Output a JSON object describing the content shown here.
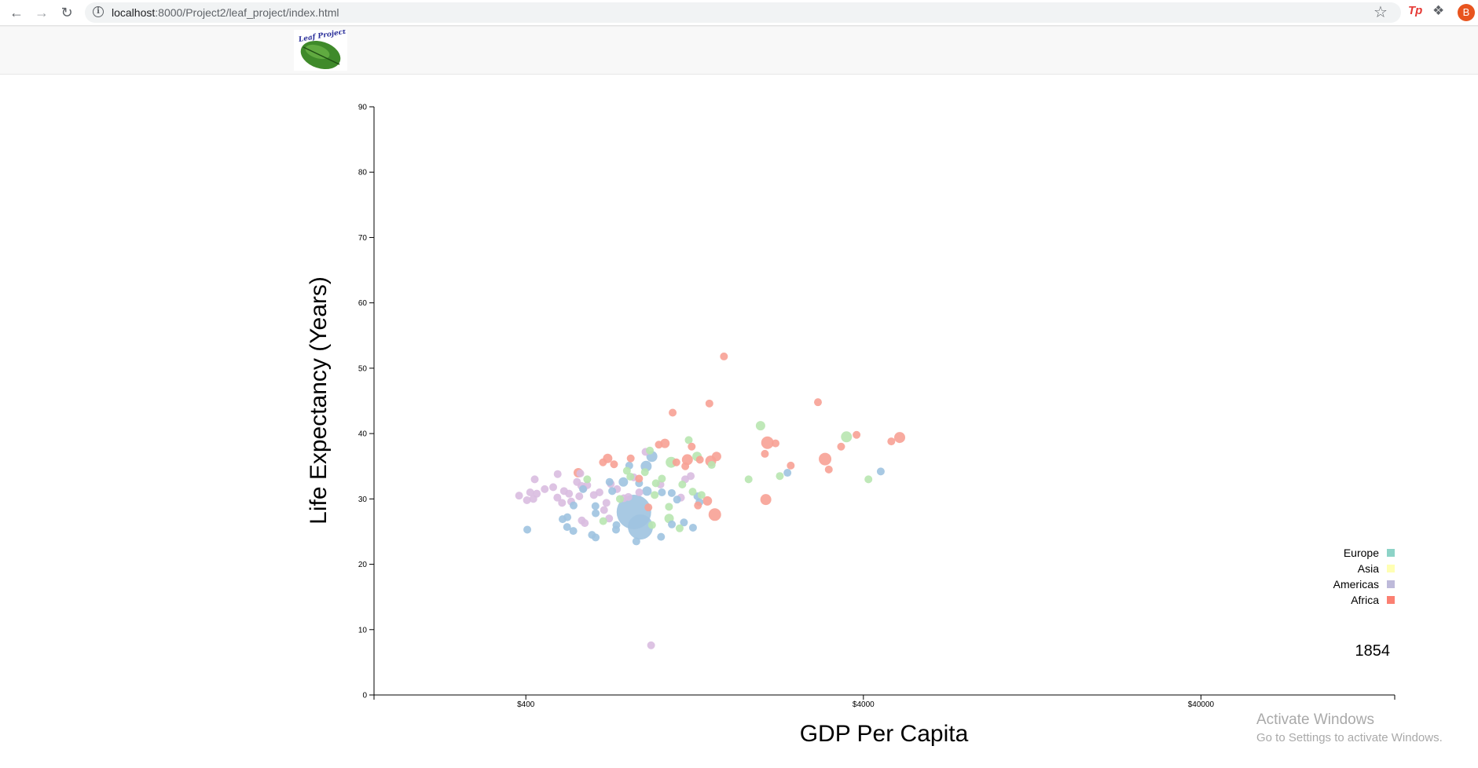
{
  "browser": {
    "url_host": "localhost",
    "url_rest": ":8000/Project2/leaf_project/index.html",
    "avatar_letter": "B",
    "extension_label": "Tp"
  },
  "site": {
    "logo_text": "Leaf Project"
  },
  "windows_watermark": {
    "title": "Activate Windows",
    "subtitle": "Go to Settings to activate Windows."
  },
  "colors": {
    "Europe": "#8dd3c7",
    "Asia": "#ffffb3",
    "Americas": "#bebada",
    "Africa": "#fb8072",
    "dot_blue": "#9ec3e0",
    "dot_purple": "#d9bde0",
    "dot_green": "#b8e6b0",
    "dot_red": "#f7a195"
  },
  "chart_data": {
    "type": "scatter",
    "title": "",
    "xlabel": "GDP Per Capita",
    "ylabel": "Life Expectancy (Years)",
    "x_scale": "log",
    "xlim": [
      142,
      150000
    ],
    "ylim": [
      0,
      90
    ],
    "x_ticks": [
      400,
      4000,
      40000
    ],
    "x_tick_labels": [
      "$400",
      "$4000",
      "$40000"
    ],
    "y_ticks": [
      0,
      10,
      20,
      30,
      40,
      50,
      60,
      70,
      80,
      90
    ],
    "year_label": "1854",
    "legend": {
      "placement": "bottom-right",
      "items": [
        {
          "name": "Europe",
          "color": "#8dd3c7"
        },
        {
          "name": "Asia",
          "color": "#ffffb3"
        },
        {
          "name": "Americas",
          "color": "#bebada"
        },
        {
          "name": "Africa",
          "color": "#fb8072"
        }
      ]
    },
    "points": [
      {
        "x": 382,
        "y": 30.5,
        "r": 5,
        "c": "purple"
      },
      {
        "x": 421,
        "y": 30,
        "r": 5,
        "c": "purple"
      },
      {
        "x": 431,
        "y": 30.8,
        "r": 5,
        "c": "purple"
      },
      {
        "x": 403,
        "y": 29.8,
        "r": 5,
        "c": "purple"
      },
      {
        "x": 412,
        "y": 31,
        "r": 5,
        "c": "purple"
      },
      {
        "x": 425,
        "y": 33,
        "r": 5,
        "c": "purple"
      },
      {
        "x": 455,
        "y": 31.5,
        "r": 5,
        "c": "purple"
      },
      {
        "x": 482,
        "y": 31.8,
        "r": 5,
        "c": "purple"
      },
      {
        "x": 497,
        "y": 33.8,
        "r": 5,
        "c": "purple"
      },
      {
        "x": 496,
        "y": 30.2,
        "r": 5,
        "c": "purple"
      },
      {
        "x": 512,
        "y": 29.4,
        "r": 5,
        "c": "purple"
      },
      {
        "x": 519,
        "y": 31.2,
        "r": 5,
        "c": "purple"
      },
      {
        "x": 537,
        "y": 30.8,
        "r": 5,
        "c": "purple"
      },
      {
        "x": 545,
        "y": 29.6,
        "r": 5,
        "c": "purple"
      },
      {
        "x": 567,
        "y": 32.6,
        "r": 5,
        "c": "purple"
      },
      {
        "x": 580,
        "y": 33.9,
        "r": 5,
        "c": "purple"
      },
      {
        "x": 584,
        "y": 32,
        "r": 5,
        "c": "purple"
      },
      {
        "x": 593,
        "y": 31.6,
        "r": 5,
        "c": "purple"
      },
      {
        "x": 608,
        "y": 32.1,
        "r": 5,
        "c": "purple"
      },
      {
        "x": 576,
        "y": 30.4,
        "r": 5,
        "c": "purple"
      },
      {
        "x": 586,
        "y": 26.7,
        "r": 5,
        "c": "purple"
      },
      {
        "x": 598,
        "y": 26.3,
        "r": 5,
        "c": "purple"
      },
      {
        "x": 636,
        "y": 30.6,
        "r": 5,
        "c": "purple"
      },
      {
        "x": 661,
        "y": 31,
        "r": 5,
        "c": "purple"
      },
      {
        "x": 682,
        "y": 28.3,
        "r": 5,
        "c": "purple"
      },
      {
        "x": 693,
        "y": 29.4,
        "r": 5,
        "c": "purple"
      },
      {
        "x": 706,
        "y": 27,
        "r": 5,
        "c": "purple"
      },
      {
        "x": 714,
        "y": 32.3,
        "r": 5,
        "c": "purple"
      },
      {
        "x": 745,
        "y": 31.5,
        "r": 5,
        "c": "purple"
      },
      {
        "x": 780,
        "y": 30.1,
        "r": 5,
        "c": "purple"
      },
      {
        "x": 805,
        "y": 30.3,
        "r": 5,
        "c": "purple"
      },
      {
        "x": 835,
        "y": 33.3,
        "r": 5,
        "c": "purple"
      },
      {
        "x": 867,
        "y": 31,
        "r": 5,
        "c": "purple"
      },
      {
        "x": 905,
        "y": 37.2,
        "r": 5,
        "c": "purple"
      },
      {
        "x": 940,
        "y": 7.6,
        "r": 5,
        "c": "purple"
      },
      {
        "x": 1002,
        "y": 32.2,
        "r": 5,
        "c": "purple"
      },
      {
        "x": 1186,
        "y": 33,
        "r": 5,
        "c": "purple"
      },
      {
        "x": 1232,
        "y": 33.5,
        "r": 5,
        "c": "purple"
      },
      {
        "x": 1152,
        "y": 30.2,
        "r": 5,
        "c": "purple"
      },
      {
        "x": 404,
        "y": 25.3,
        "r": 5,
        "c": "blue"
      },
      {
        "x": 514,
        "y": 26.9,
        "r": 5,
        "c": "blue"
      },
      {
        "x": 530,
        "y": 25.7,
        "r": 5,
        "c": "blue"
      },
      {
        "x": 531,
        "y": 27.2,
        "r": 5,
        "c": "blue"
      },
      {
        "x": 554,
        "y": 29,
        "r": 5,
        "c": "blue"
      },
      {
        "x": 553,
        "y": 25.1,
        "r": 5,
        "c": "blue"
      },
      {
        "x": 591,
        "y": 31.5,
        "r": 5,
        "c": "blue"
      },
      {
        "x": 628,
        "y": 24.5,
        "r": 5,
        "c": "blue"
      },
      {
        "x": 644,
        "y": 24.1,
        "r": 5,
        "c": "blue"
      },
      {
        "x": 643,
        "y": 28.9,
        "r": 5,
        "c": "blue"
      },
      {
        "x": 644,
        "y": 27.8,
        "r": 5,
        "c": "blue"
      },
      {
        "x": 708,
        "y": 32.6,
        "r": 5,
        "c": "blue"
      },
      {
        "x": 721,
        "y": 31.2,
        "r": 5,
        "c": "blue"
      },
      {
        "x": 740,
        "y": 25.3,
        "r": 5,
        "c": "blue"
      },
      {
        "x": 742,
        "y": 26,
        "r": 5,
        "c": "blue"
      },
      {
        "x": 778,
        "y": 32.6,
        "r": 6,
        "c": "blue"
      },
      {
        "x": 810,
        "y": 35.1,
        "r": 5,
        "c": "blue"
      },
      {
        "x": 836,
        "y": 28,
        "r": 22,
        "c": "blue"
      },
      {
        "x": 874,
        "y": 25.7,
        "r": 16,
        "c": "blue"
      },
      {
        "x": 850,
        "y": 23.5,
        "r": 5,
        "c": "blue"
      },
      {
        "x": 866,
        "y": 32.4,
        "r": 5,
        "c": "blue"
      },
      {
        "x": 909,
        "y": 35,
        "r": 7,
        "c": "blue"
      },
      {
        "x": 945,
        "y": 36.5,
        "r": 7,
        "c": "blue"
      },
      {
        "x": 914,
        "y": 31.2,
        "r": 6,
        "c": "blue"
      },
      {
        "x": 1006,
        "y": 24.2,
        "r": 5,
        "c": "blue"
      },
      {
        "x": 1012,
        "y": 31,
        "r": 5,
        "c": "blue"
      },
      {
        "x": 1082,
        "y": 30.9,
        "r": 5,
        "c": "blue"
      },
      {
        "x": 1083,
        "y": 26.1,
        "r": 5,
        "c": "blue"
      },
      {
        "x": 1122,
        "y": 29.9,
        "r": 5,
        "c": "blue"
      },
      {
        "x": 1176,
        "y": 26.4,
        "r": 5,
        "c": "blue"
      },
      {
        "x": 1251,
        "y": 25.6,
        "r": 5,
        "c": "blue"
      },
      {
        "x": 1289,
        "y": 30.4,
        "r": 5,
        "c": "blue"
      },
      {
        "x": 1307,
        "y": 29.5,
        "r": 5,
        "c": "blue"
      },
      {
        "x": 2383,
        "y": 34,
        "r": 5,
        "c": "blue"
      },
      {
        "x": 4503,
        "y": 34.2,
        "r": 5,
        "c": "blue"
      },
      {
        "x": 608,
        "y": 33,
        "r": 5,
        "c": "green"
      },
      {
        "x": 678,
        "y": 26.6,
        "r": 5,
        "c": "green"
      },
      {
        "x": 760,
        "y": 30,
        "r": 5,
        "c": "green"
      },
      {
        "x": 797,
        "y": 34.3,
        "r": 5,
        "c": "green"
      },
      {
        "x": 816,
        "y": 33.4,
        "r": 5,
        "c": "green"
      },
      {
        "x": 901,
        "y": 34.1,
        "r": 5,
        "c": "green"
      },
      {
        "x": 932,
        "y": 37.4,
        "r": 5,
        "c": "green"
      },
      {
        "x": 946,
        "y": 26,
        "r": 5,
        "c": "green"
      },
      {
        "x": 963,
        "y": 30.6,
        "r": 5,
        "c": "green"
      },
      {
        "x": 971,
        "y": 32.4,
        "r": 5,
        "c": "green"
      },
      {
        "x": 1012,
        "y": 33.1,
        "r": 5,
        "c": "green"
      },
      {
        "x": 1062,
        "y": 28.8,
        "r": 5,
        "c": "green"
      },
      {
        "x": 1063,
        "y": 27,
        "r": 6,
        "c": "green"
      },
      {
        "x": 1078,
        "y": 35.6,
        "r": 7,
        "c": "green"
      },
      {
        "x": 1142,
        "y": 25.5,
        "r": 5,
        "c": "green"
      },
      {
        "x": 1163,
        "y": 32.2,
        "r": 5,
        "c": "green"
      },
      {
        "x": 1215,
        "y": 39,
        "r": 5,
        "c": "green"
      },
      {
        "x": 1248,
        "y": 31.1,
        "r": 5,
        "c": "green"
      },
      {
        "x": 1286,
        "y": 36.5,
        "r": 6,
        "c": "green"
      },
      {
        "x": 1326,
        "y": 30.6,
        "r": 5,
        "c": "green"
      },
      {
        "x": 1421,
        "y": 35.2,
        "r": 5,
        "c": "green"
      },
      {
        "x": 1828,
        "y": 33,
        "r": 5,
        "c": "green"
      },
      {
        "x": 1983,
        "y": 41.2,
        "r": 6,
        "c": "green"
      },
      {
        "x": 2262,
        "y": 33.5,
        "r": 5,
        "c": "green"
      },
      {
        "x": 3564,
        "y": 39.5,
        "r": 7,
        "c": "green"
      },
      {
        "x": 4140,
        "y": 33,
        "r": 5,
        "c": "green"
      },
      {
        "x": 572,
        "y": 34,
        "r": 6,
        "c": "red"
      },
      {
        "x": 677,
        "y": 35.6,
        "r": 5,
        "c": "red"
      },
      {
        "x": 699,
        "y": 36.2,
        "r": 6,
        "c": "red"
      },
      {
        "x": 730,
        "y": 35.3,
        "r": 5,
        "c": "red"
      },
      {
        "x": 818,
        "y": 36.2,
        "r": 5,
        "c": "red"
      },
      {
        "x": 866,
        "y": 33.1,
        "r": 5,
        "c": "red"
      },
      {
        "x": 923,
        "y": 28.7,
        "r": 5,
        "c": "red"
      },
      {
        "x": 991,
        "y": 38.3,
        "r": 5,
        "c": "red"
      },
      {
        "x": 1033,
        "y": 38.5,
        "r": 6,
        "c": "red"
      },
      {
        "x": 1089,
        "y": 43.2,
        "r": 5,
        "c": "red"
      },
      {
        "x": 1117,
        "y": 35.6,
        "r": 5,
        "c": "red"
      },
      {
        "x": 1187,
        "y": 35,
        "r": 5,
        "c": "red"
      },
      {
        "x": 1204,
        "y": 36,
        "r": 7,
        "c": "red"
      },
      {
        "x": 1240,
        "y": 38,
        "r": 5,
        "c": "red"
      },
      {
        "x": 1294,
        "y": 29,
        "r": 5,
        "c": "red"
      },
      {
        "x": 1311,
        "y": 36,
        "r": 5,
        "c": "red"
      },
      {
        "x": 1380,
        "y": 29.7,
        "r": 6,
        "c": "red"
      },
      {
        "x": 1399,
        "y": 44.6,
        "r": 5,
        "c": "red"
      },
      {
        "x": 1412,
        "y": 35.8,
        "r": 7,
        "c": "red"
      },
      {
        "x": 1452,
        "y": 27.6,
        "r": 8,
        "c": "red"
      },
      {
        "x": 1469,
        "y": 36.5,
        "r": 6,
        "c": "red"
      },
      {
        "x": 1545,
        "y": 51.8,
        "r": 5,
        "c": "red"
      },
      {
        "x": 2043,
        "y": 36.9,
        "r": 5,
        "c": "red"
      },
      {
        "x": 2056,
        "y": 29.9,
        "r": 7,
        "c": "red"
      },
      {
        "x": 2079,
        "y": 38.6,
        "r": 8,
        "c": "red"
      },
      {
        "x": 2197,
        "y": 38.5,
        "r": 5,
        "c": "red"
      },
      {
        "x": 2437,
        "y": 35.1,
        "r": 5,
        "c": "red"
      },
      {
        "x": 2934,
        "y": 44.8,
        "r": 5,
        "c": "red"
      },
      {
        "x": 3080,
        "y": 36.1,
        "r": 8,
        "c": "red"
      },
      {
        "x": 3159,
        "y": 34.5,
        "r": 5,
        "c": "red"
      },
      {
        "x": 3436,
        "y": 38,
        "r": 5,
        "c": "red"
      },
      {
        "x": 3818,
        "y": 39.8,
        "r": 5,
        "c": "red"
      },
      {
        "x": 4839,
        "y": 38.8,
        "r": 5,
        "c": "red"
      },
      {
        "x": 5124,
        "y": 39.4,
        "r": 7,
        "c": "red"
      }
    ]
  }
}
